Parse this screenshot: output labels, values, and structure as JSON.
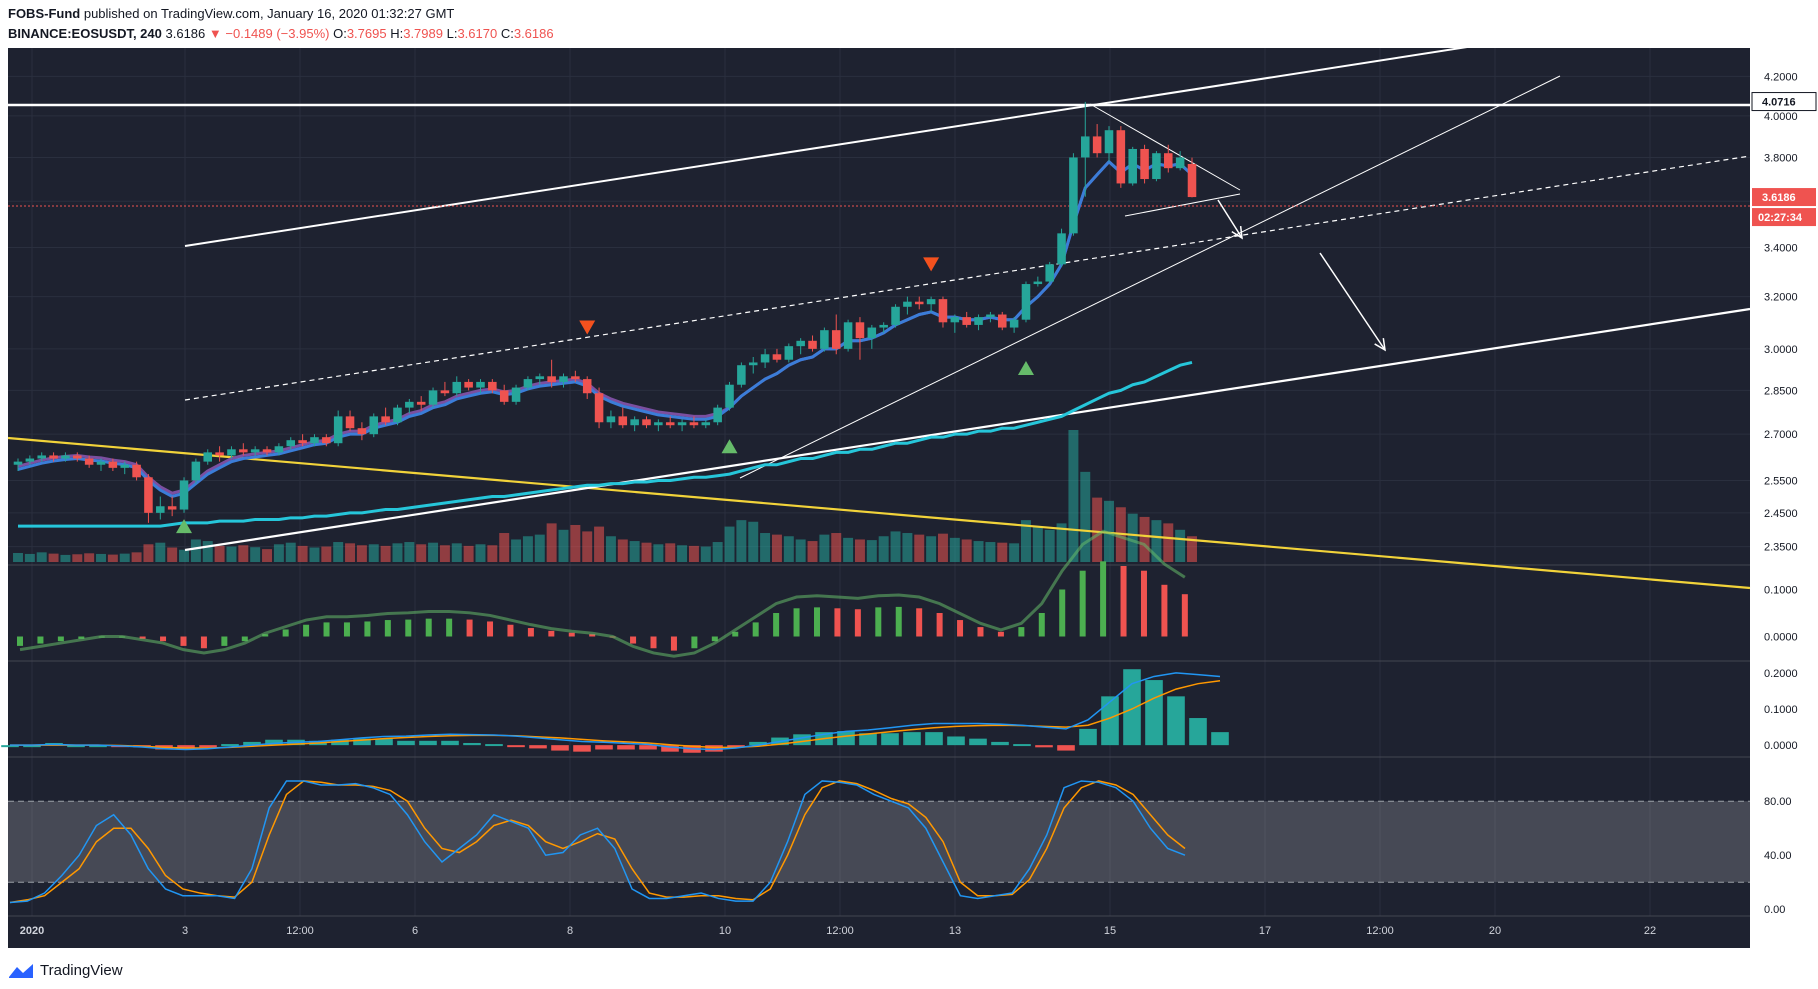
{
  "header": {
    "publisher": "FOBS-Fund",
    "published_text": "published on TradingView.com, January 16, 2020 01:32:27 GMT",
    "symbol": "BINANCE:EOSUSDT, 240",
    "last": "3.6186",
    "change": "−0.1489 (−3.95%)",
    "o_label": "O:",
    "o": "3.7695",
    "h_label": "H:",
    "h": "3.7989",
    "l_label": "L:",
    "l": "3.6170",
    "c_label": "C:",
    "c": "3.6186"
  },
  "footer": {
    "brand": "TradingView"
  },
  "colors": {
    "background": "#1e2230",
    "up": "#26a69a",
    "down": "#ef5350",
    "ema_fast": "#3b7dd8",
    "ema_slow_purple": "#7b4fa0",
    "ma_cyan": "#26c6da",
    "yellow_line": "#f2d33a"
  },
  "chart_data": {
    "type": "candlestick",
    "symbol": "BINANCE:EOSUSDT",
    "interval": "240",
    "y_scale": "log",
    "ylim": [
      2.3,
      4.35
    ],
    "price_ticks": [
      "4.2000",
      "4.0000",
      "3.8000",
      "3.6000",
      "3.4000",
      "3.2000",
      "3.0000",
      "2.8500",
      "2.7000",
      "2.5500",
      "2.4500",
      "2.3500"
    ],
    "price_tags": [
      {
        "value": 4.0716,
        "label": "4.0716",
        "style": "white"
      },
      {
        "value": 3.6186,
        "label": "3.6186",
        "style": "red"
      }
    ],
    "countdown": "02:27:34",
    "x_ticks": [
      "2020",
      "3",
      "12:00",
      "6",
      "8",
      "10",
      "12:00",
      "13",
      "15",
      "17",
      "12:00",
      "20",
      "22"
    ],
    "candles": [
      [
        2.6,
        2.62,
        2.58,
        2.61
      ],
      [
        2.61,
        2.63,
        2.6,
        2.62
      ],
      [
        2.62,
        2.64,
        2.61,
        2.63
      ],
      [
        2.63,
        2.64,
        2.61,
        2.62
      ],
      [
        2.62,
        2.64,
        2.61,
        2.63
      ],
      [
        2.63,
        2.64,
        2.61,
        2.62
      ],
      [
        2.62,
        2.63,
        2.59,
        2.6
      ],
      [
        2.6,
        2.62,
        2.58,
        2.61
      ],
      [
        2.61,
        2.62,
        2.58,
        2.59
      ],
      [
        2.59,
        2.61,
        2.57,
        2.6
      ],
      [
        2.6,
        2.61,
        2.55,
        2.56
      ],
      [
        2.56,
        2.57,
        2.42,
        2.45
      ],
      [
        2.45,
        2.5,
        2.43,
        2.47
      ],
      [
        2.47,
        2.5,
        2.44,
        2.46
      ],
      [
        2.46,
        2.56,
        2.45,
        2.55
      ],
      [
        2.55,
        2.62,
        2.54,
        2.61
      ],
      [
        2.61,
        2.65,
        2.6,
        2.64
      ],
      [
        2.64,
        2.66,
        2.61,
        2.63
      ],
      [
        2.63,
        2.66,
        2.62,
        2.65
      ],
      [
        2.65,
        2.67,
        2.63,
        2.64
      ],
      [
        2.64,
        2.66,
        2.63,
        2.65
      ],
      [
        2.65,
        2.66,
        2.63,
        2.64
      ],
      [
        2.64,
        2.67,
        2.63,
        2.66
      ],
      [
        2.66,
        2.69,
        2.65,
        2.68
      ],
      [
        2.68,
        2.7,
        2.66,
        2.67
      ],
      [
        2.67,
        2.7,
        2.66,
        2.69
      ],
      [
        2.69,
        2.7,
        2.66,
        2.67
      ],
      [
        2.67,
        2.78,
        2.66,
        2.76
      ],
      [
        2.76,
        2.78,
        2.71,
        2.72
      ],
      [
        2.72,
        2.74,
        2.68,
        2.7
      ],
      [
        2.7,
        2.77,
        2.69,
        2.76
      ],
      [
        2.76,
        2.79,
        2.73,
        2.74
      ],
      [
        2.74,
        2.8,
        2.73,
        2.79
      ],
      [
        2.79,
        2.82,
        2.77,
        2.81
      ],
      [
        2.81,
        2.83,
        2.78,
        2.8
      ],
      [
        2.8,
        2.86,
        2.79,
        2.85
      ],
      [
        2.85,
        2.88,
        2.83,
        2.84
      ],
      [
        2.84,
        2.9,
        2.83,
        2.88
      ],
      [
        2.88,
        2.89,
        2.85,
        2.86
      ],
      [
        2.86,
        2.89,
        2.84,
        2.88
      ],
      [
        2.88,
        2.89,
        2.84,
        2.85
      ],
      [
        2.85,
        2.87,
        2.8,
        2.81
      ],
      [
        2.81,
        2.87,
        2.8,
        2.86
      ],
      [
        2.86,
        2.9,
        2.85,
        2.89
      ],
      [
        2.89,
        2.91,
        2.87,
        2.9
      ],
      [
        2.9,
        2.96,
        2.86,
        2.88
      ],
      [
        2.88,
        2.91,
        2.86,
        2.9
      ],
      [
        2.9,
        2.92,
        2.88,
        2.89
      ],
      [
        2.89,
        2.9,
        2.82,
        2.84
      ],
      [
        2.84,
        2.86,
        2.72,
        2.74
      ],
      [
        2.74,
        2.78,
        2.72,
        2.76
      ],
      [
        2.76,
        2.79,
        2.72,
        2.73
      ],
      [
        2.73,
        2.76,
        2.71,
        2.75
      ],
      [
        2.75,
        2.76,
        2.72,
        2.73
      ],
      [
        2.73,
        2.75,
        2.71,
        2.74
      ],
      [
        2.74,
        2.76,
        2.72,
        2.73
      ],
      [
        2.73,
        2.75,
        2.71,
        2.74
      ],
      [
        2.74,
        2.76,
        2.72,
        2.73
      ],
      [
        2.73,
        2.75,
        2.72,
        2.74
      ],
      [
        2.74,
        2.8,
        2.73,
        2.79
      ],
      [
        2.79,
        2.88,
        2.78,
        2.87
      ],
      [
        2.87,
        2.95,
        2.86,
        2.94
      ],
      [
        2.94,
        2.97,
        2.91,
        2.95
      ],
      [
        2.95,
        3.0,
        2.93,
        2.98
      ],
      [
        2.98,
        3.0,
        2.95,
        2.96
      ],
      [
        2.96,
        3.02,
        2.95,
        3.01
      ],
      [
        3.01,
        3.04,
        2.98,
        3.03
      ],
      [
        3.03,
        3.05,
        2.99,
        3.0
      ],
      [
        3.0,
        3.08,
        2.99,
        3.07
      ],
      [
        3.07,
        3.13,
        2.98,
        3.0
      ],
      [
        3.0,
        3.11,
        2.99,
        3.1
      ],
      [
        3.1,
        3.12,
        2.96,
        3.04
      ],
      [
        3.04,
        3.09,
        3.0,
        3.08
      ],
      [
        3.08,
        3.1,
        3.06,
        3.09
      ],
      [
        3.09,
        3.17,
        3.08,
        3.16
      ],
      [
        3.16,
        3.2,
        3.13,
        3.18
      ],
      [
        3.18,
        3.2,
        3.15,
        3.17
      ],
      [
        3.17,
        3.2,
        3.14,
        3.19
      ],
      [
        3.19,
        3.2,
        3.08,
        3.1
      ],
      [
        3.1,
        3.13,
        3.06,
        3.12
      ],
      [
        3.12,
        3.14,
        3.08,
        3.09
      ],
      [
        3.09,
        3.13,
        3.07,
        3.12
      ],
      [
        3.12,
        3.14,
        3.1,
        3.13
      ],
      [
        3.13,
        3.14,
        3.07,
        3.08
      ],
      [
        3.08,
        3.12,
        3.06,
        3.11
      ],
      [
        3.11,
        3.26,
        3.1,
        3.25
      ],
      [
        3.25,
        3.28,
        3.24,
        3.26
      ],
      [
        3.26,
        3.34,
        3.25,
        3.33
      ],
      [
        3.33,
        3.48,
        3.32,
        3.46
      ],
      [
        3.46,
        3.82,
        3.45,
        3.8
      ],
      [
        3.8,
        4.07,
        3.62,
        3.9
      ],
      [
        3.9,
        3.96,
        3.8,
        3.82
      ],
      [
        3.82,
        3.95,
        3.78,
        3.93
      ],
      [
        3.93,
        3.95,
        3.66,
        3.68
      ],
      [
        3.68,
        3.85,
        3.67,
        3.84
      ],
      [
        3.84,
        3.86,
        3.68,
        3.7
      ],
      [
        3.7,
        3.83,
        3.69,
        3.82
      ],
      [
        3.82,
        3.86,
        3.73,
        3.75
      ],
      [
        3.75,
        3.83,
        3.74,
        3.8
      ],
      [
        3.7695,
        3.7989,
        3.617,
        3.6186
      ]
    ],
    "volume": [
      28,
      25,
      30,
      26,
      22,
      24,
      27,
      25,
      23,
      26,
      30,
      55,
      60,
      45,
      38,
      70,
      65,
      50,
      48,
      52,
      46,
      40,
      55,
      60,
      50,
      45,
      48,
      62,
      58,
      52,
      55,
      50,
      58,
      62,
      55,
      60,
      52,
      58,
      50,
      55,
      52,
      90,
      70,
      80,
      85,
      120,
      100,
      115,
      95,
      110,
      80,
      70,
      65,
      60,
      55,
      58,
      52,
      50,
      48,
      62,
      110,
      130,
      125,
      90,
      85,
      80,
      70,
      65,
      85,
      90,
      75,
      70,
      68,
      80,
      95,
      90,
      85,
      80,
      88,
      75,
      70,
      65,
      62,
      60,
      58,
      130,
      110,
      100,
      120,
      410,
      280,
      200,
      190,
      170,
      150,
      140,
      130,
      120,
      100,
      80
    ],
    "ema_fast": [
      2.585,
      2.595,
      2.605,
      2.612,
      2.617,
      2.62,
      2.615,
      2.612,
      2.605,
      2.6,
      2.59,
      2.55,
      2.52,
      2.5,
      2.51,
      2.54,
      2.57,
      2.59,
      2.61,
      2.62,
      2.625,
      2.63,
      2.635,
      2.645,
      2.655,
      2.665,
      2.67,
      2.69,
      2.7,
      2.7,
      2.72,
      2.73,
      2.74,
      2.76,
      2.77,
      2.79,
      2.8,
      2.82,
      2.83,
      2.84,
      2.845,
      2.835,
      2.84,
      2.855,
      2.865,
      2.87,
      2.875,
      2.88,
      2.865,
      2.83,
      2.81,
      2.795,
      2.785,
      2.775,
      2.765,
      2.76,
      2.755,
      2.75,
      2.75,
      2.76,
      2.79,
      2.83,
      2.86,
      2.89,
      2.91,
      2.94,
      2.96,
      2.97,
      3.0,
      3.0,
      3.03,
      3.03,
      3.04,
      3.06,
      3.09,
      3.11,
      3.13,
      3.14,
      3.12,
      3.12,
      3.11,
      3.11,
      3.12,
      3.11,
      3.11,
      3.16,
      3.2,
      3.25,
      3.33,
      3.5,
      3.66,
      3.72,
      3.78,
      3.73,
      3.77,
      3.74,
      3.77,
      3.76,
      3.77,
      3.72
    ],
    "ma_cyan": [
      2.41,
      2.41,
      2.41,
      2.41,
      2.41,
      2.41,
      2.41,
      2.41,
      2.41,
      2.41,
      2.41,
      2.41,
      2.41,
      2.415,
      2.42,
      2.42,
      2.42,
      2.425,
      2.425,
      2.425,
      2.43,
      2.43,
      2.43,
      2.435,
      2.435,
      2.44,
      2.44,
      2.445,
      2.45,
      2.45,
      2.455,
      2.46,
      2.46,
      2.465,
      2.47,
      2.475,
      2.48,
      2.485,
      2.49,
      2.495,
      2.5,
      2.5,
      2.505,
      2.51,
      2.515,
      2.52,
      2.525,
      2.53,
      2.535,
      2.535,
      2.54,
      2.54,
      2.545,
      2.545,
      2.55,
      2.55,
      2.555,
      2.56,
      2.56,
      2.565,
      2.57,
      2.58,
      2.59,
      2.6,
      2.6,
      2.61,
      2.62,
      2.62,
      2.63,
      2.64,
      2.64,
      2.65,
      2.65,
      2.66,
      2.67,
      2.67,
      2.68,
      2.69,
      2.69,
      2.7,
      2.7,
      2.71,
      2.71,
      2.72,
      2.72,
      2.73,
      2.74,
      2.75,
      2.76,
      2.78,
      2.8,
      2.82,
      2.84,
      2.85,
      2.87,
      2.88,
      2.9,
      2.92,
      2.94,
      2.95
    ],
    "markers": [
      {
        "index": 14,
        "type": "up-triangle",
        "price": 2.41
      },
      {
        "index": 48,
        "type": "down-triangle",
        "price": 3.08
      },
      {
        "index": 60,
        "type": "up-triangle",
        "price": 2.66
      },
      {
        "index": 77,
        "type": "down-triangle",
        "price": 3.33
      },
      {
        "index": 85,
        "type": "up-triangle",
        "price": 2.93
      }
    ],
    "panels": [
      {
        "name": "",
        "ticks": [
          "0.1000",
          "0.0000"
        ],
        "range": [
          -0.05,
          0.15
        ]
      },
      {
        "name": "",
        "ticks": [
          "0.2000",
          "0.1000",
          "0.0000"
        ],
        "range": [
          -0.03,
          0.23
        ]
      },
      {
        "name": "",
        "ticks": [
          "80.00",
          "40.00",
          "0.00"
        ],
        "range": [
          -5,
          112
        ],
        "band": [
          20,
          80
        ]
      }
    ],
    "stoch_k": [
      5,
      6,
      12,
      25,
      40,
      62,
      70,
      55,
      30,
      15,
      10,
      10,
      10,
      8,
      30,
      75,
      95,
      95,
      92,
      92,
      93,
      90,
      85,
      70,
      50,
      35,
      45,
      55,
      70,
      65,
      60,
      40,
      42,
      55,
      60,
      45,
      15,
      8,
      8,
      10,
      12,
      8,
      6,
      6,
      20,
      50,
      85,
      95,
      94,
      92,
      85,
      80,
      75,
      60,
      35,
      10,
      8,
      10,
      12,
      30,
      55,
      90,
      95,
      94,
      90,
      80,
      60,
      45,
      40
    ],
    "stoch_d": [
      5,
      7,
      10,
      20,
      30,
      50,
      60,
      60,
      45,
      25,
      15,
      12,
      10,
      9,
      20,
      55,
      85,
      95,
      94,
      92,
      92,
      91,
      88,
      80,
      60,
      45,
      42,
      50,
      62,
      66,
      62,
      50,
      45,
      50,
      56,
      52,
      30,
      12,
      9,
      9,
      10,
      10,
      8,
      7,
      15,
      40,
      70,
      90,
      95,
      93,
      88,
      82,
      78,
      68,
      50,
      20,
      10,
      10,
      11,
      22,
      45,
      75,
      90,
      95,
      92,
      85,
      70,
      55,
      45
    ],
    "macd_line": [
      0.0,
      0.0,
      0.002,
      0.0,
      0.0,
      -0.002,
      -0.005,
      -0.01,
      -0.012,
      -0.01,
      -0.005,
      0.0,
      0.005,
      0.008,
      0.01,
      0.015,
      0.02,
      0.024,
      0.025,
      0.028,
      0.03,
      0.029,
      0.028,
      0.025,
      0.02,
      0.015,
      0.01,
      0.008,
      0.005,
      0.002,
      -0.005,
      -0.01,
      -0.012,
      -0.008,
      0.0,
      0.01,
      0.02,
      0.03,
      0.038,
      0.042,
      0.048,
      0.055,
      0.06,
      0.06,
      0.06,
      0.058,
      0.055,
      0.05,
      0.045,
      0.07,
      0.12,
      0.17,
      0.19,
      0.2,
      0.195,
      0.19
    ],
    "macd_signal": [
      0.0,
      0.0,
      0.0,
      0.0,
      0.0,
      -0.001,
      -0.003,
      -0.006,
      -0.008,
      -0.008,
      -0.006,
      -0.003,
      0.0,
      0.003,
      0.006,
      0.01,
      0.014,
      0.018,
      0.021,
      0.024,
      0.026,
      0.027,
      0.027,
      0.026,
      0.023,
      0.02,
      0.016,
      0.012,
      0.009,
      0.006,
      0.001,
      -0.003,
      -0.006,
      -0.006,
      -0.003,
      0.003,
      0.01,
      0.018,
      0.025,
      0.031,
      0.037,
      0.043,
      0.048,
      0.052,
      0.054,
      0.055,
      0.054,
      0.052,
      0.05,
      0.055,
      0.075,
      0.1,
      0.13,
      0.155,
      0.17,
      0.178
    ],
    "ao": [
      -0.02,
      -0.015,
      -0.01,
      -0.005,
      0.0,
      0.0,
      -0.005,
      -0.01,
      -0.02,
      -0.025,
      -0.02,
      -0.01,
      0.005,
      0.015,
      0.025,
      0.03,
      0.03,
      0.032,
      0.035,
      0.036,
      0.038,
      0.038,
      0.036,
      0.032,
      0.025,
      0.018,
      0.012,
      0.008,
      0.005,
      0.0,
      -0.015,
      -0.025,
      -0.03,
      -0.025,
      -0.01,
      0.01,
      0.03,
      0.05,
      0.06,
      0.062,
      0.06,
      0.058,
      0.062,
      0.063,
      0.06,
      0.05,
      0.035,
      0.02,
      0.01,
      0.02,
      0.05,
      0.1,
      0.14,
      0.16,
      0.15,
      0.14,
      0.11,
      0.09
    ]
  }
}
